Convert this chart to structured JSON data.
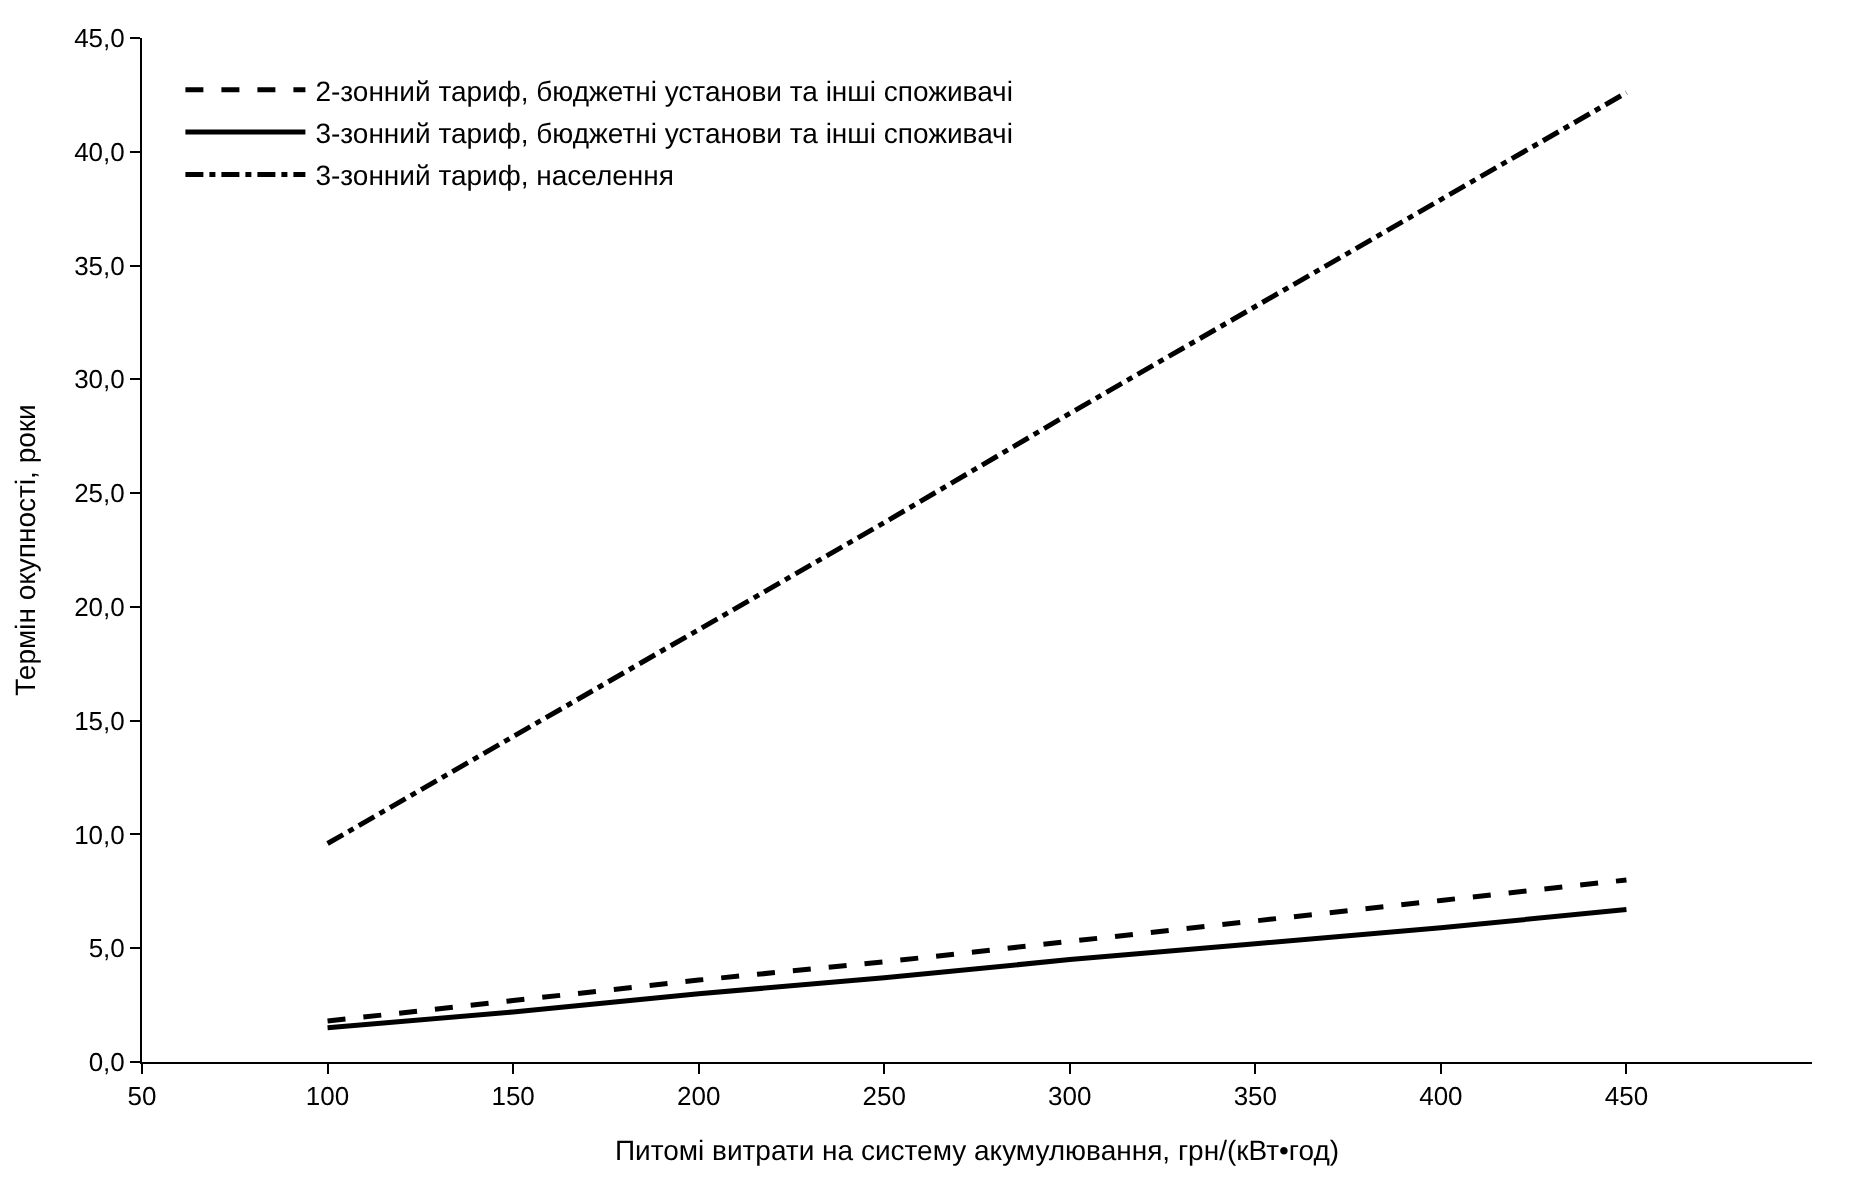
{
  "chart_data": {
    "type": "line",
    "xlabel": "Питомі витрати на систему акумулювання, грн/(кВт•год)",
    "ylabel": "Термін окупності, роки",
    "x": [
      100,
      150,
      200,
      250,
      300,
      350,
      400,
      450
    ],
    "series": [
      {
        "name": "2-зонний тариф, бюджетні установи та інші споживачі",
        "color": "#000000",
        "line_style": "dashed",
        "values": [
          1.8,
          2.7,
          3.6,
          4.4,
          5.3,
          6.2,
          7.1,
          8.0
        ]
      },
      {
        "name": "3-зонний тариф, бюджетні установи та інші споживачі",
        "color": "#000000",
        "line_style": "solid",
        "values": [
          1.5,
          2.2,
          3.0,
          3.7,
          4.5,
          5.2,
          5.9,
          6.7
        ]
      },
      {
        "name": "3-зонний тариф, населення",
        "color": "#000000",
        "line_style": "dashdot",
        "values": [
          9.6,
          14.3,
          19.0,
          23.7,
          28.5,
          33.2,
          37.9,
          42.6
        ]
      }
    ],
    "xlim": [
      50,
      500
    ],
    "xticks": [
      50,
      100,
      150,
      200,
      250,
      300,
      350,
      400,
      450
    ],
    "ylim": [
      0,
      45
    ],
    "yticks": [
      {
        "value": 0,
        "label": "0,0"
      },
      {
        "value": 5,
        "label": "5,0"
      },
      {
        "value": 10,
        "label": "10,0"
      },
      {
        "value": 15,
        "label": "15,0"
      },
      {
        "value": 20,
        "label": "20,0"
      },
      {
        "value": 25,
        "label": "25,0"
      },
      {
        "value": 30,
        "label": "30,0"
      },
      {
        "value": 35,
        "label": "35,0"
      },
      {
        "value": 40,
        "label": "40,0"
      },
      {
        "value": 45,
        "label": "45,0"
      }
    ],
    "legend": "top left",
    "marker": "none"
  }
}
